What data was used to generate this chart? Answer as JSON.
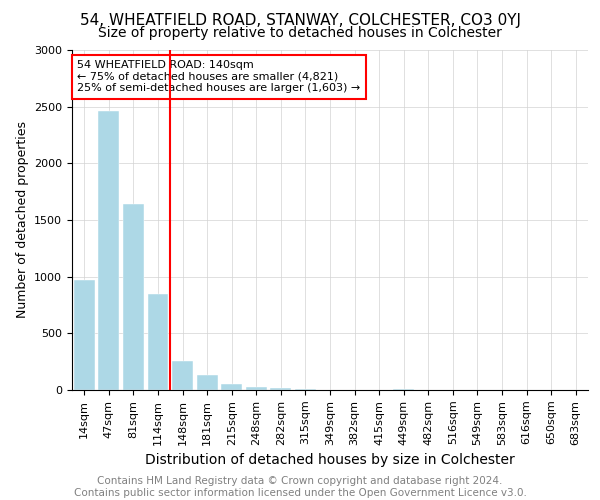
{
  "title": "54, WHEATFIELD ROAD, STANWAY, COLCHESTER, CO3 0YJ",
  "subtitle": "Size of property relative to detached houses in Colchester",
  "xlabel": "Distribution of detached houses by size in Colchester",
  "ylabel": "Number of detached properties",
  "categories": [
    "14sqm",
    "47sqm",
    "81sqm",
    "114sqm",
    "148sqm",
    "181sqm",
    "215sqm",
    "248sqm",
    "282sqm",
    "315sqm",
    "349sqm",
    "382sqm",
    "415sqm",
    "449sqm",
    "482sqm",
    "516sqm",
    "549sqm",
    "583sqm",
    "616sqm",
    "650sqm",
    "683sqm"
  ],
  "values": [
    975,
    2460,
    1640,
    850,
    260,
    130,
    55,
    30,
    15,
    5,
    2,
    0,
    0,
    5,
    0,
    0,
    0,
    0,
    0,
    0,
    0
  ],
  "bar_color": "#add8e6",
  "vline_color": "red",
  "vline_x_index": 3.5,
  "annotation_text": "54 WHEATFIELD ROAD: 140sqm\n← 75% of detached houses are smaller (4,821)\n25% of semi-detached houses are larger (1,603) →",
  "annotation_box_color": "white",
  "annotation_box_edge_color": "red",
  "ylim": [
    0,
    3000
  ],
  "yticks": [
    0,
    500,
    1000,
    1500,
    2000,
    2500,
    3000
  ],
  "footnote": "Contains HM Land Registry data © Crown copyright and database right 2024.\nContains public sector information licensed under the Open Government Licence v3.0.",
  "title_fontsize": 11,
  "subtitle_fontsize": 10,
  "xlabel_fontsize": 10,
  "ylabel_fontsize": 9,
  "tick_fontsize": 8,
  "annotation_fontsize": 8,
  "footnote_fontsize": 7.5
}
